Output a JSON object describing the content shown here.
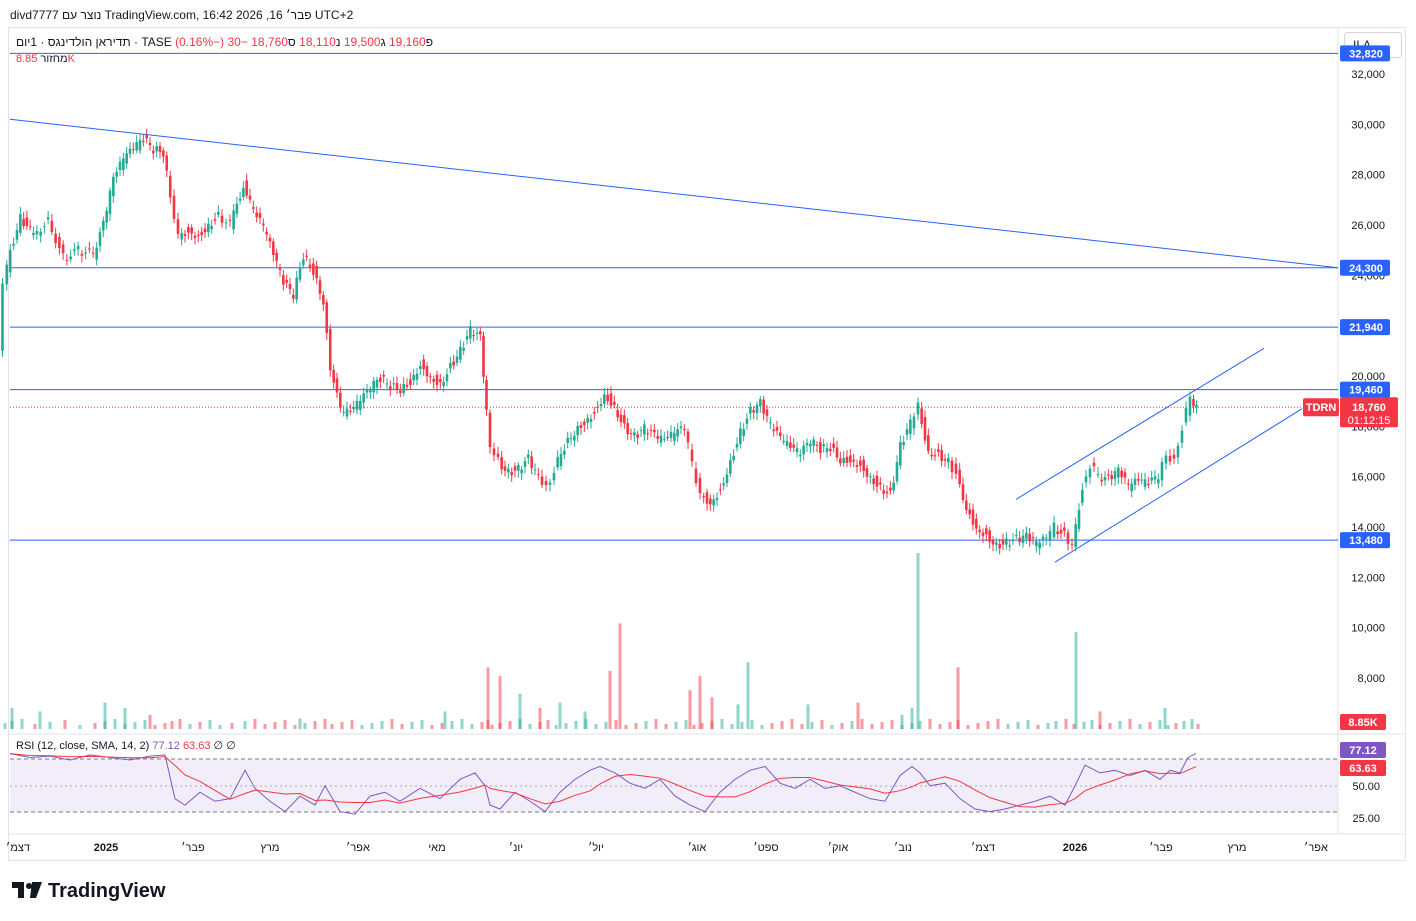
{
  "header": {
    "text": "divd7777 נוצר עם TradingView.com, 16:42 2026 ,16 פבר׳ UTC+2"
  },
  "symbol": {
    "name": "תדיראן הולדינגס · 1יום · TASE",
    "open_label": "פ",
    "open": "19,160",
    "high_label": "ג",
    "high": "19,500",
    "low_label": "נ",
    "low": "18,110",
    "close_label": "ס",
    "close": "18,760",
    "change": "−30 (−0.16%)"
  },
  "volume": {
    "label": "מחזור",
    "value": "8.85K"
  },
  "currency_button": "ILA",
  "rsi_legend": {
    "label": "RSI (12, close, SMA, 14, 2)",
    "rsi": "77.12",
    "sma": "63.63",
    "extra1": "∅",
    "extra2": "∅"
  },
  "logo": {
    "text": "TradingView"
  },
  "colors": {
    "up": "#22ab94",
    "down": "#f23645",
    "line": "#2962ff",
    "rsi": "#7e57c2",
    "rsi_sma": "#f23645"
  },
  "chart_data": {
    "type": "candlestick",
    "price_axis": {
      "ticks": [
        "32,000",
        "30,000",
        "28,000",
        "26,000",
        "24,000",
        "22,000",
        "20,000",
        "18,000",
        "16,000",
        "14,000",
        "12,000",
        "10,000",
        "8,000"
      ],
      "tick_values": [
        32000,
        30000,
        28000,
        26000,
        24000,
        22000,
        20000,
        18000,
        16000,
        14000,
        12000,
        10000,
        8000
      ]
    },
    "time_axis": {
      "labels": [
        "דצמ׳",
        "2025",
        "פבר׳",
        "מרץ",
        "אפר׳",
        "מאי",
        "יונ׳",
        "יול׳",
        "אוג׳",
        "ספט׳",
        "אוק׳",
        "נוב׳",
        "דצמ׳",
        "2026",
        "פבר׳",
        "מרץ",
        "אפר׳"
      ]
    },
    "rsi_axis": {
      "ticks": [
        "50.00",
        "25.00"
      ]
    },
    "horizontal_levels": [
      {
        "value": 32820,
        "label": "32,820"
      },
      {
        "value": 24300,
        "label": "24,300"
      },
      {
        "value": 21940,
        "label": "21,940"
      },
      {
        "value": 19460,
        "label": "19,460"
      },
      {
        "value": 13480,
        "label": "13,480"
      }
    ],
    "current_price": {
      "symbol": "TDRN",
      "value": "18,760",
      "countdown": "01:12:15"
    },
    "volume_tag": "8.85K",
    "rsi_tags": {
      "rsi": "77.12",
      "sma": "63.63"
    },
    "trendlines": [
      {
        "name": "descending resistance",
        "from": {
          "date": "2024-12",
          "price": 30200
        },
        "to": {
          "date": "2026-03",
          "price": 24300
        }
      },
      {
        "name": "channel upper",
        "from": {
          "date": "2025-12",
          "price": 15100
        },
        "to": {
          "date": "2026-03",
          "price": 21100
        }
      },
      {
        "name": "channel lower",
        "from": {
          "date": "2025-12",
          "price": 12600
        },
        "to": {
          "date": "2026-03",
          "price": 18700
        }
      }
    ],
    "series_points": [
      [
        0,
        21000
      ],
      [
        5,
        23500
      ],
      [
        12,
        25000
      ],
      [
        22,
        26300
      ],
      [
        35,
        25600
      ],
      [
        50,
        26200
      ],
      [
        65,
        24700
      ],
      [
        80,
        25000
      ],
      [
        95,
        24800
      ],
      [
        105,
        26000
      ],
      [
        115,
        27800
      ],
      [
        125,
        28600
      ],
      [
        135,
        29000
      ],
      [
        145,
        29400
      ],
      [
        155,
        29000
      ],
      [
        165,
        28900
      ],
      [
        172,
        27200
      ],
      [
        180,
        25600
      ],
      [
        190,
        25800
      ],
      [
        200,
        25600
      ],
      [
        210,
        26000
      ],
      [
        220,
        26400
      ],
      [
        232,
        26000
      ],
      [
        245,
        27600
      ],
      [
        255,
        26500
      ],
      [
        265,
        25900
      ],
      [
        275,
        24800
      ],
      [
        285,
        23700
      ],
      [
        295,
        23200
      ],
      [
        305,
        24800
      ],
      [
        315,
        24200
      ],
      [
        325,
        23000
      ],
      [
        332,
        20400
      ],
      [
        342,
        18600
      ],
      [
        352,
        18500
      ],
      [
        362,
        19000
      ],
      [
        372,
        19500
      ],
      [
        382,
        19900
      ],
      [
        392,
        19600
      ],
      [
        402,
        19500
      ],
      [
        412,
        19800
      ],
      [
        422,
        20500
      ],
      [
        432,
        20000
      ],
      [
        442,
        19700
      ],
      [
        452,
        20400
      ],
      [
        462,
        21000
      ],
      [
        472,
        21800
      ],
      [
        482,
        21500
      ],
      [
        488,
        18500
      ],
      [
        492,
        17000
      ],
      [
        500,
        16600
      ],
      [
        510,
        16200
      ],
      [
        520,
        16300
      ],
      [
        530,
        16700
      ],
      [
        540,
        15900
      ],
      [
        548,
        15500
      ],
      [
        556,
        16300
      ],
      [
        566,
        17200
      ],
      [
        576,
        17800
      ],
      [
        586,
        18200
      ],
      [
        596,
        18600
      ],
      [
        606,
        19300
      ],
      [
        616,
        18800
      ],
      [
        626,
        18000
      ],
      [
        636,
        17600
      ],
      [
        646,
        17900
      ],
      [
        656,
        17600
      ],
      [
        666,
        17400
      ],
      [
        676,
        17700
      ],
      [
        686,
        17900
      ],
      [
        694,
        16500
      ],
      [
        702,
        15300
      ],
      [
        712,
        15000
      ],
      [
        722,
        15500
      ],
      [
        732,
        16600
      ],
      [
        742,
        17800
      ],
      [
        752,
        18600
      ],
      [
        762,
        18900
      ],
      [
        772,
        18000
      ],
      [
        782,
        17500
      ],
      [
        792,
        17100
      ],
      [
        802,
        16900
      ],
      [
        812,
        17400
      ],
      [
        822,
        17100
      ],
      [
        832,
        17200
      ],
      [
        842,
        16700
      ],
      [
        852,
        16700
      ],
      [
        862,
        16500
      ],
      [
        872,
        16000
      ],
      [
        882,
        15600
      ],
      [
        892,
        15300
      ],
      [
        902,
        17200
      ],
      [
        912,
        18100
      ],
      [
        920,
        18800
      ],
      [
        930,
        17000
      ],
      [
        940,
        16900
      ],
      [
        950,
        16600
      ],
      [
        958,
        16100
      ],
      [
        968,
        14800
      ],
      [
        978,
        14000
      ],
      [
        988,
        13700
      ],
      [
        998,
        13300
      ],
      [
        1008,
        13400
      ],
      [
        1018,
        13500
      ],
      [
        1028,
        13600
      ],
      [
        1038,
        13300
      ],
      [
        1048,
        13500
      ],
      [
        1056,
        14000
      ],
      [
        1066,
        13700
      ],
      [
        1074,
        13300
      ],
      [
        1084,
        15600
      ],
      [
        1092,
        16500
      ],
      [
        1100,
        16000
      ],
      [
        1110,
        15900
      ],
      [
        1120,
        16200
      ],
      [
        1130,
        15600
      ],
      [
        1140,
        15800
      ],
      [
        1150,
        15700
      ],
      [
        1160,
        16000
      ],
      [
        1168,
        16800
      ],
      [
        1176,
        16600
      ],
      [
        1184,
        18000
      ],
      [
        1192,
        19100
      ],
      [
        1198,
        18760
      ]
    ],
    "volume_bars": [
      [
        12,
        0.12
      ],
      [
        40,
        0.1
      ],
      [
        105,
        0.15
      ],
      [
        125,
        0.12
      ],
      [
        150,
        0.08
      ],
      [
        300,
        0.06
      ],
      [
        445,
        0.1
      ],
      [
        488,
        0.35
      ],
      [
        500,
        0.3
      ],
      [
        520,
        0.2
      ],
      [
        540,
        0.12
      ],
      [
        560,
        0.15
      ],
      [
        585,
        0.1
      ],
      [
        610,
        0.33
      ],
      [
        620,
        0.6
      ],
      [
        690,
        0.22
      ],
      [
        700,
        0.3
      ],
      [
        712,
        0.18
      ],
      [
        738,
        0.14
      ],
      [
        748,
        0.38
      ],
      [
        808,
        0.14
      ],
      [
        858,
        0.15
      ],
      [
        902,
        0.08
      ],
      [
        912,
        0.12
      ],
      [
        918,
        1.0
      ],
      [
        958,
        0.35
      ],
      [
        1076,
        0.55
      ],
      [
        1100,
        0.1
      ],
      [
        1165,
        0.12
      ]
    ],
    "rsi_points": [
      [
        10,
        75
      ],
      [
        30,
        72
      ],
      [
        50,
        73
      ],
      [
        70,
        70
      ],
      [
        90,
        74
      ],
      [
        110,
        72
      ],
      [
        130,
        70
      ],
      [
        150,
        73
      ],
      [
        165,
        74
      ],
      [
        175,
        40
      ],
      [
        185,
        35
      ],
      [
        200,
        45
      ],
      [
        215,
        38
      ],
      [
        230,
        40
      ],
      [
        245,
        62
      ],
      [
        255,
        48
      ],
      [
        270,
        38
      ],
      [
        285,
        30
      ],
      [
        300,
        42
      ],
      [
        315,
        35
      ],
      [
        325,
        50
      ],
      [
        340,
        30
      ],
      [
        355,
        28
      ],
      [
        370,
        42
      ],
      [
        385,
        45
      ],
      [
        400,
        38
      ],
      [
        420,
        48
      ],
      [
        440,
        40
      ],
      [
        460,
        55
      ],
      [
        475,
        60
      ],
      [
        485,
        50
      ],
      [
        490,
        35
      ],
      [
        500,
        32
      ],
      [
        515,
        45
      ],
      [
        530,
        38
      ],
      [
        545,
        30
      ],
      [
        560,
        45
      ],
      [
        575,
        55
      ],
      [
        590,
        62
      ],
      [
        600,
        65
      ],
      [
        615,
        60
      ],
      [
        630,
        52
      ],
      [
        645,
        48
      ],
      [
        660,
        55
      ],
      [
        675,
        42
      ],
      [
        690,
        35
      ],
      [
        705,
        30
      ],
      [
        720,
        45
      ],
      [
        735,
        55
      ],
      [
        750,
        62
      ],
      [
        765,
        65
      ],
      [
        780,
        52
      ],
      [
        795,
        48
      ],
      [
        810,
        55
      ],
      [
        825,
        48
      ],
      [
        840,
        50
      ],
      [
        855,
        45
      ],
      [
        870,
        40
      ],
      [
        885,
        38
      ],
      [
        900,
        58
      ],
      [
        912,
        65
      ],
      [
        920,
        60
      ],
      [
        930,
        50
      ],
      [
        945,
        52
      ],
      [
        960,
        40
      ],
      [
        975,
        32
      ],
      [
        990,
        30
      ],
      [
        1005,
        32
      ],
      [
        1020,
        35
      ],
      [
        1035,
        38
      ],
      [
        1050,
        42
      ],
      [
        1065,
        35
      ],
      [
        1075,
        50
      ],
      [
        1085,
        66
      ],
      [
        1100,
        60
      ],
      [
        1115,
        62
      ],
      [
        1130,
        58
      ],
      [
        1145,
        62
      ],
      [
        1160,
        55
      ],
      [
        1170,
        62
      ],
      [
        1180,
        60
      ],
      [
        1188,
        72
      ],
      [
        1196,
        75
      ]
    ]
  }
}
